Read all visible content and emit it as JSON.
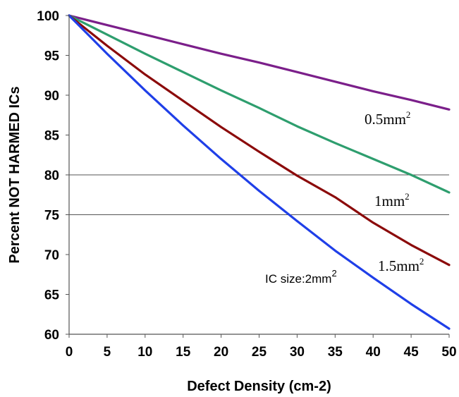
{
  "chart_data": {
    "type": "line",
    "xlabel": "Defect Density (cm-2)",
    "ylabel": "Percent NOT HARMED ICs",
    "xlim": [
      0,
      50
    ],
    "ylim": [
      60,
      100
    ],
    "x_ticks": [
      "0",
      "5",
      "10",
      "15",
      "20",
      "25",
      "30",
      "35",
      "40",
      "45",
      "50"
    ],
    "y_ticks": [
      "60",
      "65",
      "70",
      "75",
      "80",
      "85",
      "90",
      "95",
      "100"
    ],
    "horizontal_gridlines": [
      80,
      75
    ],
    "series": [
      {
        "color": "#7B1F8A",
        "x": [
          0,
          5,
          10,
          15,
          20,
          25,
          30,
          35,
          40,
          45,
          50
        ],
        "y": [
          100,
          98.8,
          97.6,
          96.4,
          95.2,
          94.1,
          92.9,
          91.7,
          90.5,
          89.4,
          88.2
        ]
      },
      {
        "color": "#2E9E6E",
        "x": [
          0,
          5,
          10,
          15,
          20,
          25,
          30,
          35,
          40,
          45,
          50
        ],
        "y": [
          100,
          97.6,
          95.2,
          92.9,
          90.6,
          88.4,
          86.1,
          84.0,
          82.0,
          80.0,
          77.8
        ]
      },
      {
        "color": "#8B0A0A",
        "x": [
          0,
          5,
          10,
          15,
          20,
          25,
          30,
          35,
          40,
          45,
          50
        ],
        "y": [
          100,
          96.2,
          92.6,
          89.3,
          86.0,
          82.9,
          79.9,
          77.2,
          74.0,
          71.2,
          68.7
        ]
      },
      {
        "color": "#1F3FE8",
        "x": [
          0,
          5,
          10,
          15,
          20,
          25,
          30,
          35,
          40,
          45,
          50
        ],
        "y": [
          100,
          95.2,
          90.6,
          86.2,
          82.0,
          78.0,
          74.2,
          70.5,
          67.1,
          63.8,
          60.7
        ]
      }
    ],
    "annotations": [
      {
        "base": "0.5mm",
        "sup": "2",
        "style": "serif"
      },
      {
        "base": "1mm",
        "sup": "2",
        "style": "serif"
      },
      {
        "base": "1.5mm",
        "sup": "2",
        "style": "serif"
      },
      {
        "base": "IC size:2mm",
        "sup": "2",
        "style": "sans"
      }
    ]
  }
}
